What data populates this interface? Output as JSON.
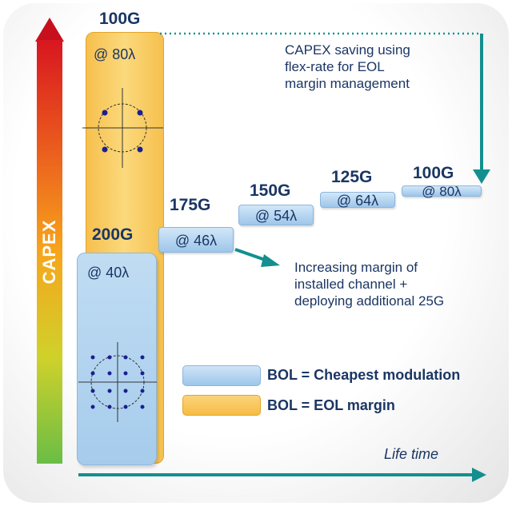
{
  "axis": {
    "vertical_label": "CAPEX",
    "horizontal_label": "Life time"
  },
  "columns": {
    "eol_top_rate": "100G",
    "eol_top_lambda": "@ 80λ",
    "bol_rate": "200G",
    "bol_lambda": "@ 40λ"
  },
  "steps": [
    {
      "rate": "175G",
      "lambda": "@ 46λ"
    },
    {
      "rate": "150G",
      "lambda": "@ 54λ"
    },
    {
      "rate": "125G",
      "lambda": "@ 64λ"
    },
    {
      "rate": "100G",
      "lambda": "@ 80λ"
    }
  ],
  "notes": {
    "capex_saving": "CAPEX saving using\nflex-rate for EOL\nmargin management",
    "increasing_margin": "Increasing margin of\ninstalled channel +\ndeploying additional 25G"
  },
  "legend": {
    "bol_cheapest": "BOL = Cheapest modulation",
    "bol_eol": "BOL = EOL margin"
  },
  "colors": {
    "text": "#1b3664",
    "teal_arrow": "#138f8f",
    "orange_fill": "#f6c04e",
    "blue_fill": "#a6ccec",
    "constellation_dot": "#1a1f8f"
  }
}
